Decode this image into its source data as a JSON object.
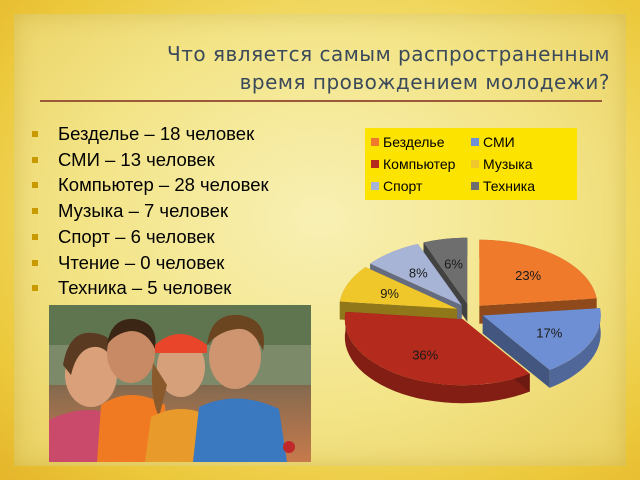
{
  "slide": {
    "title_line1": "Что является самым распространенным",
    "title_line2": "время  провождением молодежи?"
  },
  "bullets": [
    "Безделье – 18 человек",
    "СМИ – 13 человек",
    "Компьютер – 28 человек",
    "Музыка – 7 человек",
    "Спорт – 6 человек",
    "Чтение – 0 человек",
    "Техника – 5 человек"
  ],
  "chart_data": {
    "type": "pie",
    "title": "",
    "categories": [
      "Безделье",
      "СМИ",
      "Компьютер",
      "Музыка",
      "Спорт",
      "Техника"
    ],
    "values": [
      23,
      17,
      36,
      9,
      8,
      6
    ],
    "labels": [
      "23%",
      "17%",
      "36%",
      "9%",
      "8%",
      "6%"
    ],
    "colors": [
      "#ef7a2c",
      "#6f8fd4",
      "#b42a1c",
      "#f0c72a",
      "#a8b4d6",
      "#6e6e6e"
    ],
    "legend_position": "top-right",
    "legend_layout": [
      [
        "Безделье",
        "СМИ"
      ],
      [
        "Компьютер",
        "Музыка"
      ],
      [
        "Спорт",
        "Техника"
      ]
    ],
    "exploded": true,
    "style": "3d"
  }
}
